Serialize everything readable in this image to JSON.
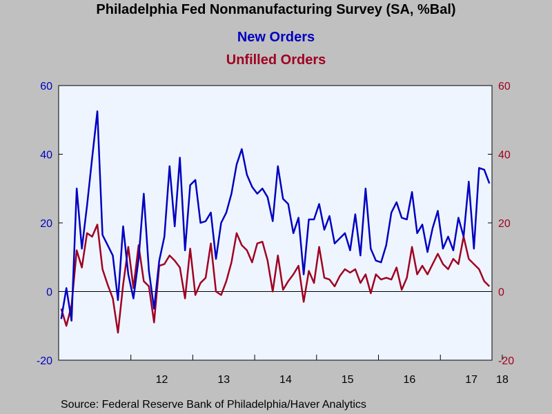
{
  "title": "Philadelphia Fed Nonmanufacturing Survey (SA, %Bal)",
  "source": "Source:  Federal Reserve Bank of Philadelphia/Haver Analytics",
  "colors": {
    "new_orders": "#0000c0",
    "unfilled_orders": "#a00020",
    "plot_bg": "#eef5ff",
    "page_bg": "#c0c0c0"
  },
  "chart_data": {
    "type": "line",
    "title": "Philadelphia Fed Nonmanufacturing Survey (SA, %Bal)",
    "x_unit": "month index (0 = Apr 2011)",
    "xlabel": "",
    "ylabel_left": "",
    "ylabel_right": "",
    "ylim": [
      -20,
      60
    ],
    "y_ticks": [
      -20,
      0,
      20,
      40,
      60
    ],
    "x_ticks": [
      {
        "label": "12",
        "x": 14
      },
      {
        "label": "13",
        "x": 26
      },
      {
        "label": "14",
        "x": 38
      },
      {
        "label": "15",
        "x": 50
      },
      {
        "label": "16",
        "x": 62
      },
      {
        "label": "17",
        "x": 74
      },
      {
        "label": "18",
        "x": 86
      }
    ],
    "grid": false,
    "zero_line": true,
    "series": [
      {
        "name": "New Orders",
        "axis": "left",
        "values": [
          -8,
          1,
          -8.5,
          30,
          12.5,
          25,
          39,
          52.5,
          16.5,
          13.5,
          10.5,
          -2.5,
          19,
          5,
          -2,
          9.5,
          28.5,
          6,
          -5,
          9,
          16,
          36.5,
          19,
          39,
          12,
          31,
          32.5,
          20,
          20.5,
          23,
          9.5,
          20,
          23,
          28.5,
          37,
          41.5,
          34,
          30.5,
          28.5,
          30,
          27.5,
          20.5,
          36.5,
          27,
          25.5,
          17,
          21.5,
          5,
          21,
          21,
          25.5,
          18,
          22,
          14,
          15.5,
          17,
          12,
          22.5,
          10.5,
          30,
          12.5,
          9,
          8.5,
          13.5,
          23,
          26,
          21.5,
          21,
          29,
          17,
          19.5,
          11.5,
          18.5,
          23.5,
          12.5,
          16,
          12,
          21.5,
          16,
          32,
          12.5,
          36,
          35.5,
          31.5
        ]
      },
      {
        "name": "Unfilled Orders",
        "axis": "right",
        "values": [
          -5,
          -10,
          -4,
          12,
          7,
          17,
          16,
          19.5,
          6.5,
          2,
          -2,
          -12,
          2,
          13,
          1,
          13.5,
          3,
          1.5,
          -9,
          7.5,
          8,
          10.5,
          9,
          7,
          -2,
          12.5,
          -1,
          2.5,
          4,
          14,
          0,
          -1,
          3,
          8.5,
          17,
          13.5,
          12,
          8.5,
          14,
          14.5,
          9,
          0,
          10.5,
          0.5,
          3,
          5,
          7.5,
          -3,
          6,
          2.5,
          13,
          4,
          3.5,
          1.5,
          4.5,
          6.5,
          5.5,
          6.5,
          2.5,
          5,
          -0.5,
          5,
          3.5,
          4,
          3.5,
          7,
          0.5,
          4,
          13,
          5,
          7.5,
          5,
          8,
          11,
          8,
          6.5,
          9.5,
          8,
          16,
          9.5,
          8,
          6.5,
          3,
          1.5
        ]
      }
    ]
  }
}
